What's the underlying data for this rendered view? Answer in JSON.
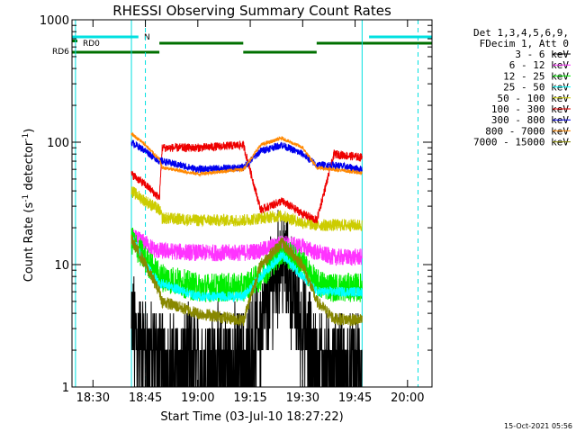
{
  "chart_data": {
    "type": "line",
    "title": "RHESSI Observing Summary Count Rates",
    "xlabel": "Start Time (03-Jul-10 18:27:22)",
    "ylabel_main": "Count Rate (s",
    "ylabel_sup1": "-1",
    "ylabel_mid": " detector",
    "ylabel_sup2": "-1",
    "ylabel_end": ")",
    "yscale": "log",
    "ylim": [
      1,
      1000
    ],
    "xlim": [
      "18:24",
      "20:07"
    ],
    "x_ticks": [
      "18:30",
      "18:45",
      "19:00",
      "19:15",
      "19:30",
      "19:45",
      "20:00"
    ],
    "y_ticks": [
      "1",
      "10",
      "100",
      "1000"
    ],
    "footer_timestamp": "15-Oct-2021 05:56",
    "info": {
      "line1": "Det 1,3,4,5,6,9,",
      "line2": "FDecim 1, Att 0"
    },
    "flags": {
      "rd0_label": "RD0",
      "rd6_label": "RD6",
      "n_label": "N",
      "rd6_color": "#007000",
      "night_color": "#00e0e0",
      "night_segments": [
        [
          "18:24",
          "18:43"
        ],
        [
          "19:49",
          "20:07"
        ]
      ],
      "rd6_segments": [
        [
          "18:24",
          "18:49"
        ],
        [
          "19:13",
          "19:34"
        ]
      ],
      "rd0_segments": [
        [
          "18:49",
          "19:13"
        ],
        [
          "19:34",
          "20:07"
        ]
      ],
      "cyan_solid_lines": [
        "18:25",
        "18:41",
        "19:47"
      ],
      "cyan_dashed_lines": [
        "18:45",
        "20:03"
      ]
    },
    "series": [
      {
        "name": "3 - 6 keV",
        "color": "#000000",
        "legend": "3 - 6 keV",
        "base": 2.0,
        "noise": 0.35
      },
      {
        "name": "6 - 12 keV",
        "color": "#ff33ff",
        "legend": "6 - 12 keV",
        "base": 12,
        "noise": 0.07
      },
      {
        "name": "12 - 25 keV",
        "color": "#00ee00",
        "legend": "12 - 25 keV",
        "base": 7,
        "noise": 0.12
      },
      {
        "name": "25 - 50 keV",
        "color": "#00ffff",
        "legend": "25 - 50 keV",
        "base": 22,
        "noise": 0.04
      },
      {
        "name": "50 - 100 keV",
        "color": "#cccc00",
        "legend": "50 - 100 keV",
        "base": 22,
        "noise": 0.05
      },
      {
        "name": "100 - 300 keV",
        "color": "#ee0000",
        "legend": "100 - 300 keV",
        "base": 90,
        "noise": 0.035
      },
      {
        "name": "300 - 800 keV",
        "color": "#0000ee",
        "legend": "300 - 800 keV",
        "base": 60,
        "noise": 0.03
      },
      {
        "name": "800 - 7000 keV",
        "color": "#ff8800",
        "legend": "800 - 7000 keV",
        "base": 58,
        "noise": 0.015
      },
      {
        "name": "7000 - 15000 keV",
        "color": "#888800",
        "legend": "7000 - 15000 keV",
        "base": 3.5,
        "noise": 0.05
      }
    ],
    "day_intervals": [
      [
        "18:41",
        "18:49"
      ],
      [
        "18:49",
        "19:13"
      ],
      [
        "19:13",
        "19:34"
      ],
      [
        "19:34",
        "19:47"
      ]
    ],
    "profiles": {
      "3 - 6 keV": [
        [
          18.683,
          3.0
        ],
        [
          18.7,
          2.8
        ],
        [
          18.75,
          2.0
        ],
        [
          18.8,
          1.7
        ],
        [
          18.817,
          1.8
        ],
        [
          18.83,
          1.5
        ],
        [
          19.0,
          1.5
        ],
        [
          19.217,
          1.6
        ],
        [
          19.3,
          3.0
        ],
        [
          19.4,
          12.0
        ],
        [
          19.5,
          3.0
        ],
        [
          19.567,
          1.5
        ],
        [
          19.65,
          1.5
        ],
        [
          19.75,
          1.4
        ],
        [
          19.783,
          1.4
        ]
      ],
      "6 - 12 keV": [
        [
          18.683,
          17
        ],
        [
          18.75,
          15
        ],
        [
          18.8,
          13
        ],
        [
          18.817,
          13
        ],
        [
          19.0,
          12.5
        ],
        [
          19.217,
          12.5
        ],
        [
          19.3,
          13
        ],
        [
          19.4,
          15
        ],
        [
          19.5,
          14
        ],
        [
          19.567,
          12.5
        ],
        [
          19.65,
          11.5
        ],
        [
          19.783,
          11.5
        ]
      ],
      "12 - 25 keV": [
        [
          18.683,
          16
        ],
        [
          18.75,
          11
        ],
        [
          18.817,
          8
        ],
        [
          19.0,
          6.5
        ],
        [
          19.217,
          6.5
        ],
        [
          19.3,
          8
        ],
        [
          19.4,
          13
        ],
        [
          19.5,
          10
        ],
        [
          19.567,
          7
        ],
        [
          19.65,
          6.5
        ],
        [
          19.783,
          6.5
        ]
      ],
      "25 - 50 keV": [
        [
          18.683,
          16
        ],
        [
          18.7,
          15
        ],
        [
          18.75,
          10
        ],
        [
          18.817,
          7
        ],
        [
          18.83,
          7
        ],
        [
          19.0,
          5.5
        ],
        [
          19.217,
          5.5
        ],
        [
          19.3,
          8
        ],
        [
          19.4,
          12
        ],
        [
          19.5,
          8
        ],
        [
          19.567,
          6
        ],
        [
          19.65,
          6
        ],
        [
          19.783,
          6
        ]
      ],
      "50 - 100 keV": [
        [
          18.683,
          40
        ],
        [
          18.75,
          33
        ],
        [
          18.817,
          28
        ],
        [
          18.83,
          24
        ],
        [
          19.0,
          23
        ],
        [
          19.217,
          23
        ],
        [
          19.3,
          24
        ],
        [
          19.4,
          25
        ],
        [
          19.5,
          22
        ],
        [
          19.567,
          21
        ],
        [
          19.65,
          21
        ],
        [
          19.783,
          21
        ]
      ],
      "100 - 300 keV": [
        [
          18.683,
          55
        ],
        [
          18.75,
          45
        ],
        [
          18.817,
          35
        ],
        [
          18.83,
          90
        ],
        [
          19.0,
          90
        ],
        [
          19.217,
          95
        ],
        [
          19.3,
          28
        ],
        [
          19.4,
          33
        ],
        [
          19.5,
          26
        ],
        [
          19.567,
          23
        ],
        [
          19.65,
          80
        ],
        [
          19.783,
          75
        ]
      ],
      "300 - 800 keV": [
        [
          18.683,
          100
        ],
        [
          18.75,
          85
        ],
        [
          18.817,
          70
        ],
        [
          18.83,
          70
        ],
        [
          19.0,
          60
        ],
        [
          19.217,
          62
        ],
        [
          19.3,
          85
        ],
        [
          19.4,
          95
        ],
        [
          19.5,
          80
        ],
        [
          19.567,
          65
        ],
        [
          19.65,
          65
        ],
        [
          19.783,
          60
        ]
      ],
      "800 - 7000 keV": [
        [
          18.683,
          118
        ],
        [
          18.75,
          95
        ],
        [
          18.817,
          72
        ],
        [
          18.83,
          62
        ],
        [
          19.0,
          55
        ],
        [
          19.217,
          60
        ],
        [
          19.3,
          95
        ],
        [
          19.4,
          108
        ],
        [
          19.5,
          90
        ],
        [
          19.567,
          62
        ],
        [
          19.65,
          60
        ],
        [
          19.783,
          56
        ]
      ],
      "7000 - 15000 keV": [
        [
          18.683,
          16
        ],
        [
          18.75,
          10
        ],
        [
          18.817,
          6
        ],
        [
          18.83,
          5
        ],
        [
          19.0,
          4
        ],
        [
          19.217,
          3.5
        ],
        [
          19.3,
          10
        ],
        [
          19.4,
          15
        ],
        [
          19.5,
          10
        ],
        [
          19.567,
          5
        ],
        [
          19.65,
          3.6
        ],
        [
          19.783,
          3.5
        ]
      ]
    }
  }
}
